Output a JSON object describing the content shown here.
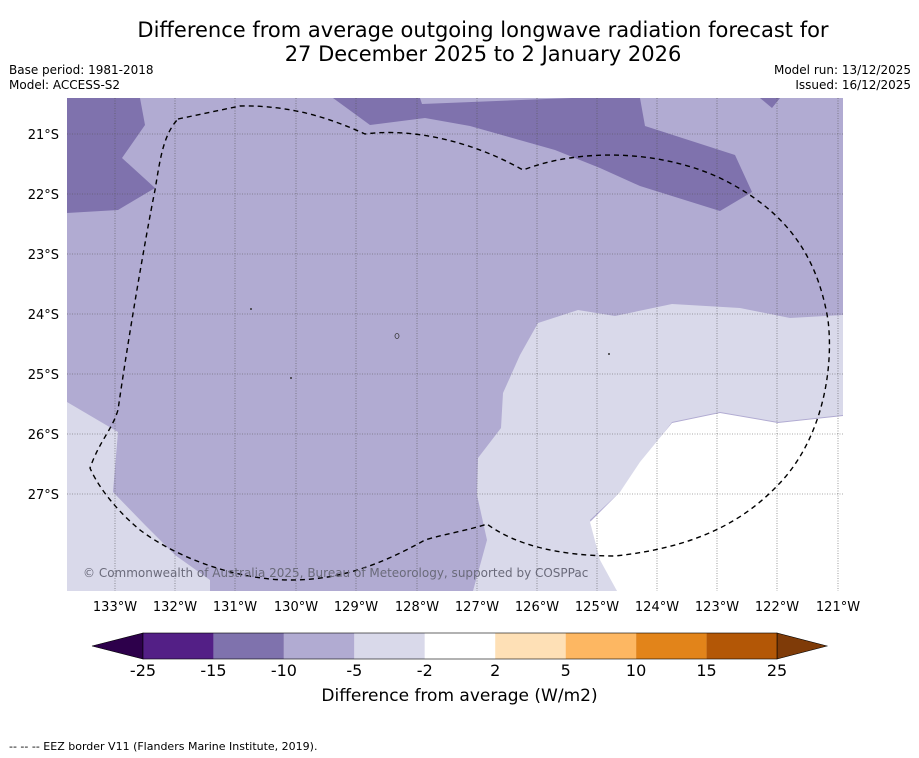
{
  "title": {
    "line1": "Difference from average outgoing longwave radiation forecast for",
    "line2": "27 December 2025 to 2 January 2026"
  },
  "meta": {
    "base_period": "Base period: 1981-2018",
    "model": "Model: ACCESS-S2",
    "model_run": "Model run: 13/12/2025",
    "issued": "Issued: 16/12/2025"
  },
  "map": {
    "copyright": "© Commonwealth of Australia 2025, Bureau of Meteorology, supported by COSPPac",
    "lat_labels": [
      "21°S",
      "22°S",
      "23°S",
      "24°S",
      "25°S",
      "26°S",
      "27°S"
    ],
    "lon_labels": [
      "133°W",
      "132°W",
      "131°W",
      "130°W",
      "129°W",
      "128°W",
      "127°W",
      "126°W",
      "125°W",
      "124°W",
      "123°W",
      "122°W",
      "121°W"
    ],
    "colors": {
      "band_-15_-10": "#7f72ad",
      "band_-10_-5": "#b1abd2",
      "band_-5_-2": "#d9d9ea",
      "band_-2_2": "#ffffff"
    }
  },
  "colorbar": {
    "title": "Difference from average (W/m2)",
    "ticks": [
      "-25",
      "-15",
      "-10",
      "-5",
      "-2",
      "2",
      "5",
      "10",
      "15",
      "25"
    ],
    "colors": [
      "#531f86",
      "#7f72ad",
      "#b1abd2",
      "#d9d9ea",
      "#ffffff",
      "#fee0b6",
      "#fdb762",
      "#e2841a",
      "#b35706"
    ],
    "under_color": "#2d004b",
    "over_color": "#7f3b08"
  },
  "footnote": "--  --  -- EEZ border V11 (Flanders Marine Institute, 2019)."
}
